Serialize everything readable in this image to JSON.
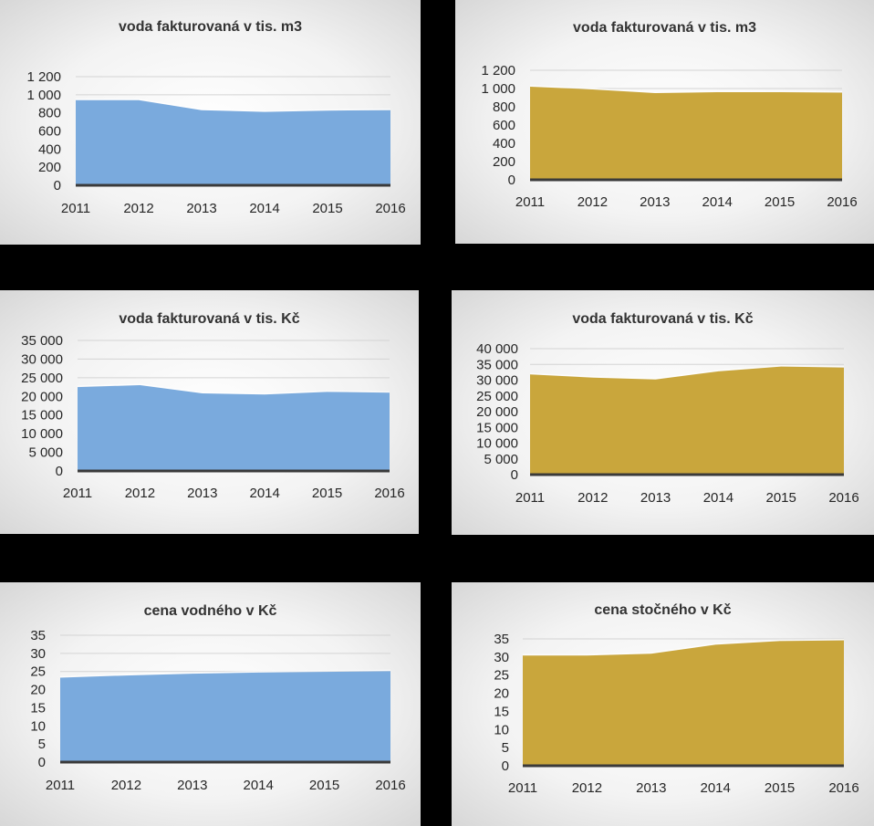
{
  "chart_data": [
    {
      "type": "area",
      "title": "voda fakturovaná v tis. m3",
      "categories": [
        "2011",
        "2012",
        "2013",
        "2014",
        "2015",
        "2016"
      ],
      "values": [
        940,
        940,
        830,
        810,
        825,
        830
      ],
      "yticks": [
        "0",
        "200",
        "400",
        "600",
        "800",
        "1 000",
        "1 200"
      ],
      "ylim": [
        0,
        1200
      ],
      "color": "#7aaadd",
      "grid": true,
      "legend": "none"
    },
    {
      "type": "area",
      "title": "voda fakturovaná v tis. m3",
      "categories": [
        "2011",
        "2012",
        "2013",
        "2014",
        "2015",
        "2016"
      ],
      "values": [
        1020,
        990,
        950,
        960,
        960,
        955
      ],
      "yticks": [
        "0",
        "200",
        "400",
        "600",
        "800",
        "1 000",
        "1 200"
      ],
      "ylim": [
        0,
        1200
      ],
      "color": "#c9a63c",
      "grid": true,
      "legend": "none"
    },
    {
      "type": "area",
      "title": "voda fakturovaná v tis. Kč",
      "categories": [
        "2011",
        "2012",
        "2013",
        "2014",
        "2015",
        "2016"
      ],
      "values": [
        22500,
        23000,
        20800,
        20500,
        21200,
        21000
      ],
      "yticks": [
        "0",
        "5 000",
        "10 000",
        "15 000",
        "20 000",
        "25 000",
        "30 000",
        "35 000"
      ],
      "ylim": [
        0,
        35000
      ],
      "color": "#7aaadd",
      "grid": true,
      "legend": "none"
    },
    {
      "type": "area",
      "title": "voda fakturovaná v tis. Kč",
      "categories": [
        "2011",
        "2012",
        "2013",
        "2014",
        "2015",
        "2016"
      ],
      "values": [
        31800,
        30800,
        30200,
        32800,
        34300,
        34000
      ],
      "yticks": [
        "0",
        "5 000",
        "10 000",
        "15 000",
        "20 000",
        "25 000",
        "30 000",
        "35 000",
        "40 000"
      ],
      "ylim": [
        0,
        40000
      ],
      "color": "#c9a63c",
      "grid": true,
      "legend": "none"
    },
    {
      "type": "area",
      "title": "cena vodného v Kč",
      "categories": [
        "2011",
        "2012",
        "2013",
        "2014",
        "2015",
        "2016"
      ],
      "values": [
        23.3,
        23.9,
        24.4,
        24.7,
        24.9,
        25.1
      ],
      "yticks": [
        "0",
        "5",
        "10",
        "15",
        "20",
        "25",
        "30",
        "35"
      ],
      "ylim": [
        0,
        35
      ],
      "color": "#7aaadd",
      "grid": true,
      "legend": "none"
    },
    {
      "type": "area",
      "title": "cena stočného v Kč",
      "categories": [
        "2011",
        "2012",
        "2013",
        "2014",
        "2015",
        "2016"
      ],
      "values": [
        30.4,
        30.4,
        30.9,
        33.4,
        34.4,
        34.6
      ],
      "yticks": [
        "0",
        "5",
        "10",
        "15",
        "20",
        "25",
        "30",
        "35"
      ],
      "ylim": [
        0,
        35
      ],
      "color": "#c9a63c",
      "grid": true,
      "legend": "none"
    }
  ]
}
